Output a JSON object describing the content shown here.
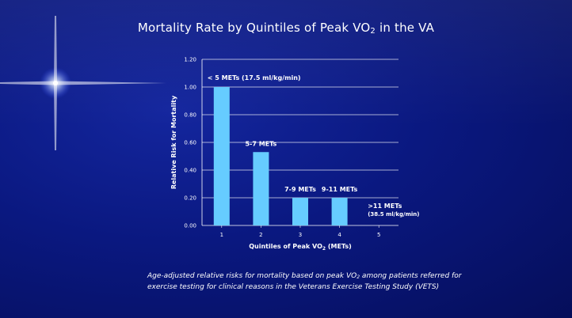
{
  "title": {
    "main": "Mortality Rate by Quintiles of Peak VO",
    "sub": "2",
    "suffix": " in the VA"
  },
  "caption": {
    "part1": "Age-adjusted relative risks for mortality based on peak VO",
    "sub": "2",
    "part2": " among patients referred for exercise testing for clinical reasons in the Veterans Exercise Testing Study (VETS)"
  },
  "chart_data": {
    "type": "bar",
    "categories": [
      "1",
      "2",
      "3",
      "4",
      "5"
    ],
    "values": [
      1.0,
      0.53,
      0.2,
      0.2,
      0.0
    ],
    "bar_labels": [
      {
        "text": "< 5 METs (17.5 ml/kg/min)",
        "sub": ""
      },
      {
        "text": "5-7 METs",
        "sub": ""
      },
      {
        "text": "7-9 METs",
        "sub": ""
      },
      {
        "text": "9-11 METs",
        "sub": ""
      },
      {
        "text": ">11 METs",
        "sub": "(38.5 ml/kg/min)"
      }
    ],
    "xlabel": "Quintiles of Peak VO",
    "xlabel_sub": "2",
    "xlabel_suffix": " (METs)",
    "ylabel": "Relative Risk for Mortality",
    "ylim": [
      0,
      1.2
    ],
    "yticks": [
      "0.00",
      "0.20",
      "0.40",
      "0.60",
      "0.80",
      "1.00",
      "1.20"
    ],
    "grid": true,
    "bar_color": "#66ccff"
  }
}
